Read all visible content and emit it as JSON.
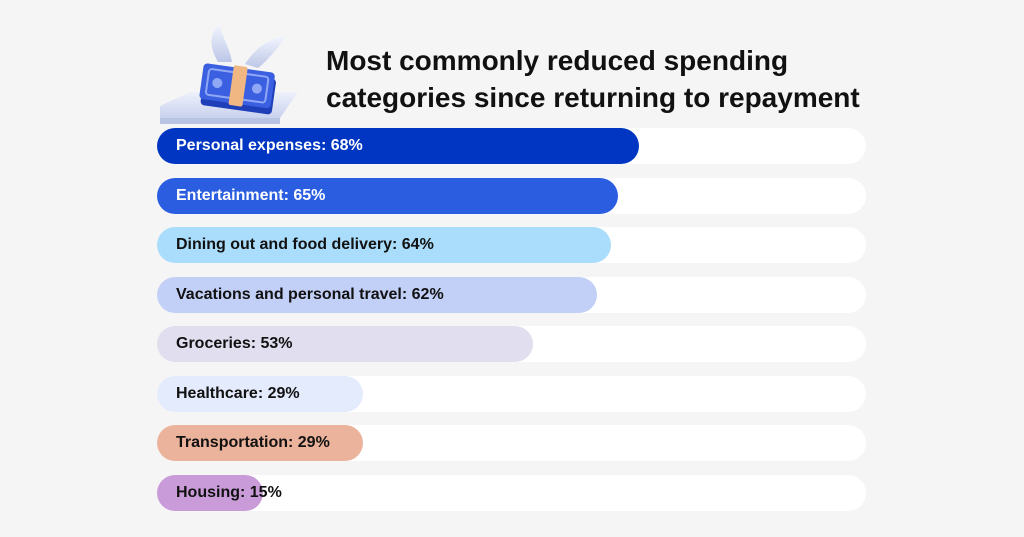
{
  "chart_data": {
    "type": "bar",
    "orientation": "horizontal",
    "title_lines": [
      "Most commonly reduced spending",
      "categories since returning to repayment"
    ],
    "xlim": [
      0,
      100
    ],
    "categories": [
      "Personal expenses",
      "Entertainment",
      "Dining out and food delivery",
      "Vacations and personal travel",
      "Groceries",
      "Healthcare",
      "Transportation",
      "Housing"
    ],
    "values": [
      68,
      65,
      64,
      62,
      53,
      29,
      29,
      15
    ],
    "labels": [
      "Personal expenses: 68%",
      "Entertainment: 65%",
      "Dining out and food delivery: 64%",
      "Vacations and personal travel: 62%",
      "Groceries: 53%",
      "Healthcare: 29%",
      "Transportation: 29%",
      "Housing: 15%"
    ],
    "colors": [
      "#0036c2",
      "#2a5de0",
      "#aadcfb",
      "#c2d0f7",
      "#e1deef",
      "#e3ebfd",
      "#ebb39b",
      "#c99bd9"
    ],
    "label_colors": [
      "#ffffff",
      "#ffffff",
      "#111111",
      "#111111",
      "#111111",
      "#111111",
      "#111111",
      "#111111"
    ],
    "track_color": "#ffffff",
    "grid": false,
    "legend": "none"
  }
}
